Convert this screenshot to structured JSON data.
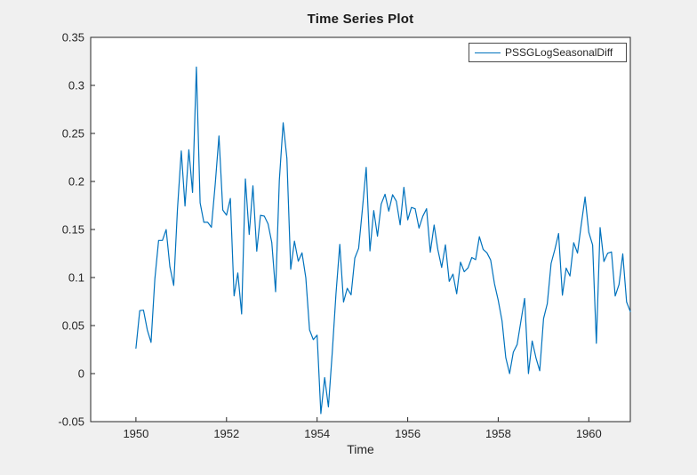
{
  "figure": {
    "background": "#f0f0f0",
    "title": "Time Series Plot",
    "xlabel": "Time",
    "legend": {
      "label": "PSSGLogSeasonalDiff",
      "line_color": "#0072bd"
    }
  },
  "chart_data": {
    "type": "line",
    "title": "Time Series Plot",
    "xlabel": "Time",
    "ylabel": "",
    "xlim": [
      1949,
      1960.9167
    ],
    "ylim": [
      -0.05,
      0.35
    ],
    "xticks": [
      1950,
      1952,
      1954,
      1956,
      1958,
      1960
    ],
    "xtick_labels": [
      "1950",
      "1952",
      "1954",
      "1956",
      "1958",
      "1960"
    ],
    "yticks": [
      -0.05,
      0,
      0.05,
      0.1,
      0.15,
      0.2,
      0.25,
      0.3,
      0.35
    ],
    "ytick_labels": [
      "-0.05",
      "0",
      "0.05",
      "0.1",
      "0.15",
      "0.2",
      "0.25",
      "0.3",
      "0.35"
    ],
    "grid": false,
    "legend_position": "northeast",
    "legend_entries": [
      "PSSGLogSeasonalDiff"
    ],
    "axis_color": "#262626",
    "plot_background": "#ffffff",
    "series": [
      {
        "name": "PSSGLogSeasonalDiff",
        "color": "#0072bd",
        "x_start_year": 1950,
        "x_interval": "monthly",
        "values": [
          0.0264,
          0.0656,
          0.066,
          0.0455,
          0.0325,
          0.0987,
          0.1386,
          0.1386,
          0.1499,
          0.1112,
          0.0918,
          0.171,
          0.2318,
          0.1744,
          0.233,
          0.1885,
          0.3192,
          0.1778,
          0.1575,
          0.1575,
          0.1523,
          0.1973,
          0.2474,
          0.1703,
          0.1649,
          0.1823,
          0.0809,
          0.1047,
          0.062,
          0.2027,
          0.1448,
          0.1956,
          0.1274,
          0.1647,
          0.1639,
          0.1559,
          0.1365,
          0.0852,
          0.2011,
          0.2611,
          0.2242,
          0.1086,
          0.1379,
          0.1169,
          0.1257,
          0.0996,
          0.0455,
          0.0354,
          0.04,
          -0.0417,
          -0.0042,
          -0.0346,
          0.0216,
          0.0829,
          0.1345,
          0.0744,
          0.0888,
          0.0819,
          0.1203,
          0.1304,
          0.1708,
          0.2146,
          0.1277,
          0.1697,
          0.1431,
          0.1766,
          0.1867,
          0.1691,
          0.1862,
          0.1794,
          0.1548,
          0.1939,
          0.16,
          0.173,
          0.1716,
          0.1515,
          0.1636,
          0.1717,
          0.1263,
          0.1546,
          0.1291,
          0.1105,
          0.1341,
          0.096,
          0.1036,
          0.0831,
          0.116,
          0.106,
          0.1101,
          0.1208,
          0.1186,
          0.1425,
          0.1293,
          0.1257,
          0.1182,
          0.0935,
          0.0764,
          0.0549,
          0.0167,
          0.0,
          0.0223,
          0.0303,
          0.0544,
          0.0782,
          0.0,
          0.034,
          0.0163,
          0.003,
          0.0572,
          0.0728,
          0.1147,
          0.1292,
          0.1458,
          0.0816,
          0.1098,
          0.1016,
          0.1363,
          0.1255,
          0.1551,
          0.1838,
          0.147,
          0.1339,
          0.0315,
          0.152,
          0.1167,
          0.1253,
          0.1267,
          0.0807,
          0.0928,
          0.1246,
          0.0745,
          0.0645
        ]
      }
    ]
  }
}
